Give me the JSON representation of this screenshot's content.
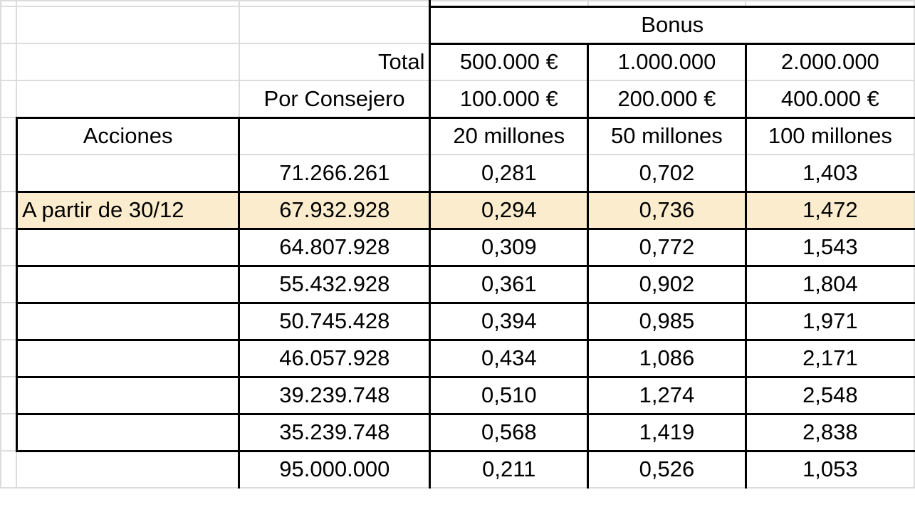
{
  "header": {
    "bonus": "Bonus",
    "total_label": "Total",
    "por_consejero_label": "Por Consejero",
    "acciones_label": "Acciones",
    "totals": [
      "500.000 €",
      "1.000.000",
      "2.000.000"
    ],
    "per_consejero": [
      "100.000 €",
      "200.000 €",
      "400.000 €"
    ],
    "targets": [
      "20 millones",
      "50 millones",
      "100 millones"
    ]
  },
  "rows": [
    {
      "label": "",
      "shares": "71.266.261",
      "v": [
        "0,281",
        "0,702",
        "1,403"
      ]
    },
    {
      "label": "A partir de 30/12",
      "shares": "67.932.928",
      "v": [
        "0,294",
        "0,736",
        "1,472"
      ]
    },
    {
      "label": "",
      "shares": "64.807.928",
      "v": [
        "0,309",
        "0,772",
        "1,543"
      ]
    },
    {
      "label": "",
      "shares": "55.432.928",
      "v": [
        "0,361",
        "0,902",
        "1,804"
      ]
    },
    {
      "label": "",
      "shares": "50.745.428",
      "v": [
        "0,394",
        "0,985",
        "1,971"
      ]
    },
    {
      "label": "",
      "shares": "46.057.928",
      "v": [
        "0,434",
        "1,086",
        "2,171"
      ]
    },
    {
      "label": "",
      "shares": "39.239.748",
      "v": [
        "0,510",
        "1,274",
        "2,548"
      ]
    },
    {
      "label": "",
      "shares": "35.239.748",
      "v": [
        "0,568",
        "1,419",
        "2,838"
      ]
    },
    {
      "label": "",
      "shares": "95.000.000",
      "v": [
        "0,211",
        "0,526",
        "1,053"
      ]
    }
  ],
  "colors": {
    "highlight": "#fbeccd",
    "gridline": "#dcdcdc"
  }
}
